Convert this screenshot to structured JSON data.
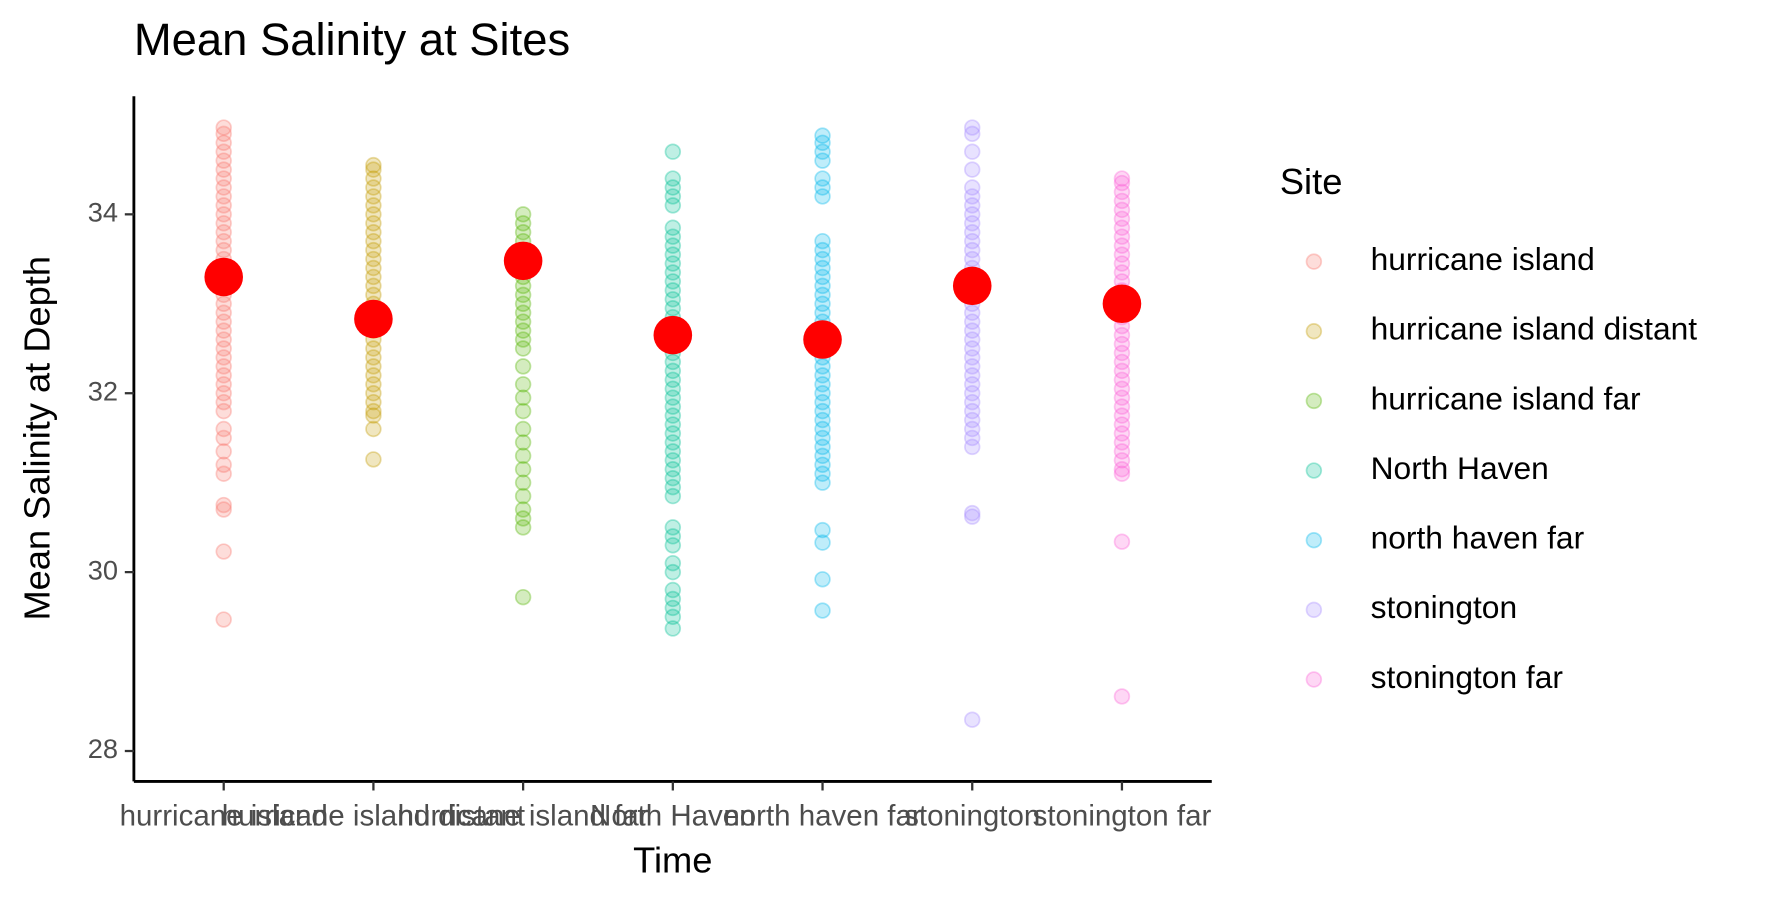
{
  "chart_data": {
    "type": "strip",
    "title": "Mean Salinity at Sites",
    "x_label": "Time",
    "y_label": "Mean Salinity at Depth",
    "legend_title": "Site",
    "legend_position": "right",
    "categories": [
      "hurricane island",
      "hurricane island distant",
      "hurricane island far",
      "North Haven",
      "north haven far",
      "stonington",
      "stonington far"
    ],
    "ylim": [
      27.66,
      35.32
    ],
    "yticks": [
      28,
      30,
      32,
      34
    ],
    "point_opacity": 0.25,
    "series": [
      {
        "name": "hurricane island",
        "color": "#F8766D",
        "values": [
          29.47,
          30.23,
          30.7,
          30.75,
          31.1,
          31.2,
          31.35,
          31.5,
          31.6,
          31.8,
          31.9,
          32.0,
          32.1,
          32.2,
          32.3,
          32.4,
          32.5,
          32.6,
          32.7,
          32.8,
          32.9,
          33.0,
          33.1,
          33.2,
          33.3,
          33.4,
          33.5,
          33.6,
          33.7,
          33.8,
          33.9,
          34.0,
          34.1,
          34.2,
          34.3,
          34.4,
          34.5,
          34.6,
          34.7,
          34.8,
          34.9,
          34.97
        ]
      },
      {
        "name": "hurricane island distant",
        "color": "#C49A00",
        "values": [
          31.26,
          31.6,
          31.75,
          31.8,
          31.9,
          32.0,
          32.1,
          32.2,
          32.3,
          32.4,
          32.5,
          32.6,
          32.7,
          32.8,
          32.9,
          33.0,
          33.1,
          33.2,
          33.3,
          33.4,
          33.5,
          33.6,
          33.7,
          33.8,
          33.9,
          34.0,
          34.1,
          34.2,
          34.3,
          34.4,
          34.5,
          34.55
        ]
      },
      {
        "name": "hurricane island far",
        "color": "#53B400",
        "values": [
          29.72,
          30.5,
          30.6,
          30.7,
          30.85,
          31.0,
          31.15,
          31.3,
          31.45,
          31.6,
          31.8,
          31.95,
          32.1,
          32.3,
          32.5,
          32.6,
          32.7,
          32.8,
          32.9,
          33.0,
          33.1,
          33.2,
          33.3,
          33.4,
          33.5,
          33.6,
          33.7,
          33.8,
          33.9,
          34.0
        ]
      },
      {
        "name": "North Haven",
        "color": "#00C094",
        "values": [
          29.37,
          29.5,
          29.6,
          29.7,
          29.8,
          30.0,
          30.1,
          30.3,
          30.4,
          30.5,
          30.85,
          30.95,
          31.05,
          31.15,
          31.25,
          31.35,
          31.45,
          31.55,
          31.65,
          31.75,
          31.85,
          31.95,
          32.05,
          32.15,
          32.25,
          32.35,
          32.45,
          32.55,
          32.65,
          32.75,
          32.85,
          32.95,
          33.05,
          33.15,
          33.25,
          33.35,
          33.45,
          33.55,
          33.65,
          33.75,
          33.85,
          34.1,
          34.2,
          34.3,
          34.4,
          34.7
        ]
      },
      {
        "name": "north haven far",
        "color": "#00B6EB",
        "values": [
          29.57,
          29.92,
          30.33,
          30.47,
          31.0,
          31.1,
          31.2,
          31.3,
          31.4,
          31.5,
          31.6,
          31.7,
          31.8,
          31.9,
          32.0,
          32.1,
          32.2,
          32.3,
          32.4,
          32.5,
          32.6,
          32.7,
          32.8,
          32.9,
          33.0,
          33.1,
          33.2,
          33.3,
          33.4,
          33.5,
          33.6,
          33.7,
          34.2,
          34.3,
          34.4,
          34.6,
          34.7,
          34.8,
          34.88
        ]
      },
      {
        "name": "stonington",
        "color": "#A58AFF",
        "values": [
          28.35,
          30.62,
          30.66,
          31.4,
          31.5,
          31.6,
          31.7,
          31.8,
          31.9,
          32.0,
          32.1,
          32.2,
          32.3,
          32.4,
          32.5,
          32.6,
          32.7,
          32.8,
          32.9,
          33.0,
          33.1,
          33.2,
          33.3,
          33.4,
          33.5,
          33.6,
          33.7,
          33.8,
          33.9,
          34.0,
          34.1,
          34.2,
          34.3,
          34.5,
          34.7,
          34.9,
          34.97
        ]
      },
      {
        "name": "stonington far",
        "color": "#FB61D7",
        "values": [
          28.61,
          30.34,
          31.1,
          31.15,
          31.25,
          31.35,
          31.45,
          31.55,
          31.65,
          31.75,
          31.85,
          31.95,
          32.05,
          32.15,
          32.25,
          32.35,
          32.45,
          32.55,
          32.65,
          32.75,
          32.85,
          32.95,
          33.05,
          33.15,
          33.25,
          33.35,
          33.45,
          33.55,
          33.65,
          33.75,
          33.85,
          33.95,
          34.05,
          34.15,
          34.25,
          34.35,
          34.4
        ]
      }
    ],
    "means": {
      "color": "#FF0000",
      "values": [
        33.3,
        32.83,
        33.48,
        32.65,
        32.6,
        33.2,
        33.0
      ]
    }
  }
}
